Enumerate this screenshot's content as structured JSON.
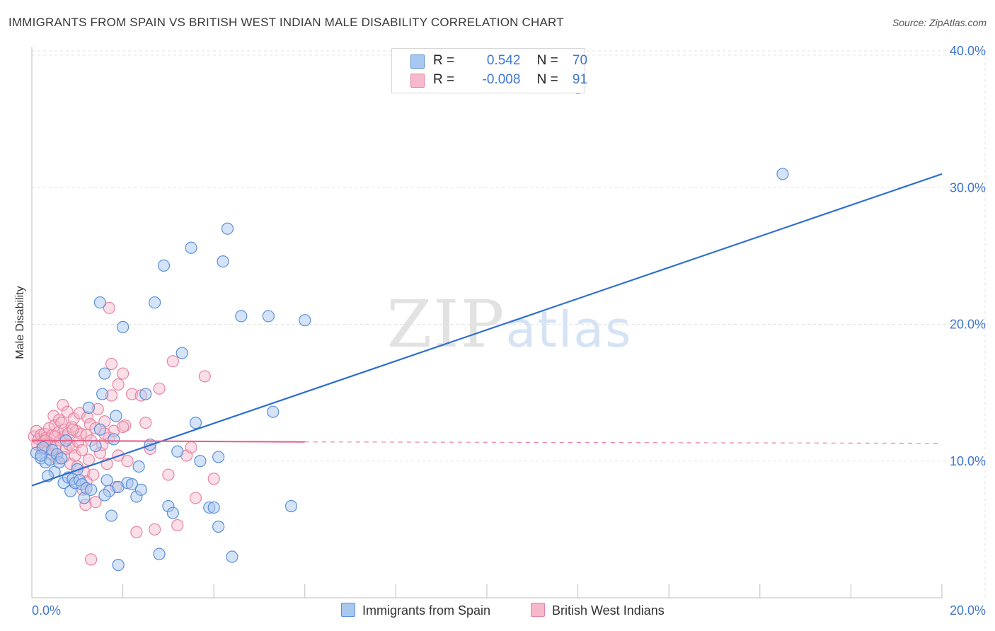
{
  "title": "IMMIGRANTS FROM SPAIN VS BRITISH WEST INDIAN MALE DISABILITY CORRELATION CHART",
  "source": "Source: ZipAtlas.com",
  "legend": {
    "r_label": "R =",
    "n_label": "N =",
    "series": [
      {
        "r": "0.542",
        "n": "70"
      },
      {
        "r": "-0.008",
        "n": "91"
      }
    ]
  },
  "bottom_legend": [
    "Immigrants from Spain",
    "British West Indians"
  ],
  "colors": {
    "blue_fill": "#a9c8f0",
    "blue_stroke": "#5b8fd8",
    "blue_line": "#2f6fcf",
    "pink_fill": "#f5b8cc",
    "pink_stroke": "#e7849f",
    "pink_line": "#e8638a",
    "label_blue": "#3f77d0"
  },
  "chart_data": {
    "type": "scatter",
    "title": "IMMIGRANTS FROM SPAIN VS BRITISH WEST INDIAN MALE DISABILITY CORRELATION CHART",
    "xlabel": "",
    "ylabel": "Male Disability",
    "xlim": [
      0,
      20
    ],
    "ylim": [
      0,
      40
    ],
    "x_tick_labels": [
      "0.0%",
      "20.0%"
    ],
    "y_tick_labels": [
      "10.0%",
      "20.0%",
      "30.0%",
      "40.0%"
    ],
    "y_ticks": [
      10,
      20,
      30,
      40
    ],
    "grid": true,
    "legend_position": "top-center",
    "watermark": "ZIPatlas",
    "series": [
      {
        "name": "Immigrants from Spain",
        "r": 0.542,
        "n": 70,
        "trend": {
          "x": [
            0,
            20
          ],
          "y": [
            8.2,
            31.0
          ],
          "style": "solid"
        },
        "points": [
          [
            0.1,
            10.6
          ],
          [
            0.2,
            10.2
          ],
          [
            0.25,
            11.0
          ],
          [
            0.3,
            9.9
          ],
          [
            0.4,
            10.1
          ],
          [
            0.45,
            10.8
          ],
          [
            0.5,
            9.2
          ],
          [
            0.55,
            10.5
          ],
          [
            0.6,
            9.9
          ],
          [
            0.65,
            10.2
          ],
          [
            0.7,
            8.4
          ],
          [
            0.75,
            11.5
          ],
          [
            0.8,
            8.8
          ],
          [
            0.85,
            7.8
          ],
          [
            0.9,
            8.7
          ],
          [
            0.95,
            8.4
          ],
          [
            1.0,
            9.4
          ],
          [
            1.05,
            8.6
          ],
          [
            1.1,
            8.3
          ],
          [
            1.15,
            7.3
          ],
          [
            1.2,
            8.0
          ],
          [
            1.25,
            13.9
          ],
          [
            1.3,
            7.9
          ],
          [
            1.4,
            11.1
          ],
          [
            1.5,
            12.3
          ],
          [
            1.55,
            14.9
          ],
          [
            1.6,
            16.4
          ],
          [
            1.65,
            8.6
          ],
          [
            1.7,
            7.8
          ],
          [
            1.75,
            6.0
          ],
          [
            1.8,
            11.6
          ],
          [
            1.85,
            13.3
          ],
          [
            1.9,
            8.1
          ],
          [
            2.0,
            19.8
          ],
          [
            2.1,
            8.4
          ],
          [
            2.2,
            8.3
          ],
          [
            2.3,
            7.4
          ],
          [
            2.35,
            9.6
          ],
          [
            2.4,
            7.9
          ],
          [
            2.5,
            14.9
          ],
          [
            2.6,
            11.2
          ],
          [
            2.7,
            21.6
          ],
          [
            2.8,
            3.2
          ],
          [
            2.9,
            24.3
          ],
          [
            3.0,
            6.7
          ],
          [
            3.1,
            6.2
          ],
          [
            3.2,
            10.7
          ],
          [
            3.3,
            17.9
          ],
          [
            3.5,
            25.6
          ],
          [
            3.6,
            12.8
          ],
          [
            3.7,
            10.0
          ],
          [
            3.9,
            6.6
          ],
          [
            4.0,
            6.6
          ],
          [
            4.1,
            10.3
          ],
          [
            4.1,
            5.2
          ],
          [
            4.2,
            24.6
          ],
          [
            4.3,
            27.0
          ],
          [
            4.4,
            3.0
          ],
          [
            4.6,
            20.6
          ],
          [
            5.2,
            20.6
          ],
          [
            5.3,
            13.6
          ],
          [
            5.7,
            6.7
          ],
          [
            6.0,
            20.3
          ],
          [
            1.5,
            21.6
          ],
          [
            12.0,
            37.3
          ],
          [
            16.5,
            31.0
          ],
          [
            0.2,
            10.4
          ],
          [
            0.35,
            8.9
          ],
          [
            1.9,
            2.4
          ],
          [
            1.6,
            7.5
          ]
        ]
      },
      {
        "name": "British West Indians",
        "r": -0.008,
        "n": 91,
        "trend": {
          "x": [
            0,
            6
          ],
          "y": [
            11.5,
            11.4
          ],
          "dashed_to": [
            20,
            11.3
          ],
          "style": "solid-then-dashed"
        },
        "points": [
          [
            0.05,
            11.8
          ],
          [
            0.1,
            12.2
          ],
          [
            0.12,
            11.2
          ],
          [
            0.15,
            11.6
          ],
          [
            0.2,
            11.9
          ],
          [
            0.22,
            10.9
          ],
          [
            0.25,
            11.4
          ],
          [
            0.28,
            12.0
          ],
          [
            0.3,
            11.1
          ],
          [
            0.32,
            11.7
          ],
          [
            0.35,
            10.8
          ],
          [
            0.38,
            12.4
          ],
          [
            0.4,
            11.3
          ],
          [
            0.42,
            10.5
          ],
          [
            0.45,
            11.9
          ],
          [
            0.48,
            13.3
          ],
          [
            0.5,
            12.6
          ],
          [
            0.52,
            11.0
          ],
          [
            0.55,
            10.2
          ],
          [
            0.58,
            12.1
          ],
          [
            0.6,
            13.0
          ],
          [
            0.62,
            11.5
          ],
          [
            0.65,
            12.8
          ],
          [
            0.68,
            14.1
          ],
          [
            0.7,
            11.8
          ],
          [
            0.72,
            12.3
          ],
          [
            0.75,
            10.9
          ],
          [
            0.78,
            13.6
          ],
          [
            0.8,
            12.0
          ],
          [
            0.82,
            11.2
          ],
          [
            0.85,
            9.8
          ],
          [
            0.88,
            12.5
          ],
          [
            0.9,
            11.0
          ],
          [
            0.92,
            13.1
          ],
          [
            0.95,
            10.4
          ],
          [
            0.98,
            12.2
          ],
          [
            1.0,
            9.6
          ],
          [
            1.02,
            11.4
          ],
          [
            1.05,
            13.5
          ],
          [
            1.08,
            12.0
          ],
          [
            1.1,
            10.8
          ],
          [
            1.12,
            7.9
          ],
          [
            1.15,
            9.2
          ],
          [
            1.18,
            6.8
          ],
          [
            1.2,
            11.9
          ],
          [
            1.22,
            13.2
          ],
          [
            1.25,
            10.1
          ],
          [
            1.28,
            12.7
          ],
          [
            1.3,
            11.5
          ],
          [
            1.35,
            9.0
          ],
          [
            1.4,
            12.4
          ],
          [
            1.45,
            13.8
          ],
          [
            1.5,
            10.6
          ],
          [
            1.55,
            11.2
          ],
          [
            1.6,
            12.9
          ],
          [
            1.65,
            9.8
          ],
          [
            1.7,
            11.7
          ],
          [
            1.75,
            14.8
          ],
          [
            1.8,
            12.2
          ],
          [
            1.85,
            8.1
          ],
          [
            1.9,
            10.4
          ],
          [
            2.0,
            16.4
          ],
          [
            2.05,
            12.6
          ],
          [
            2.1,
            10.0
          ],
          [
            2.2,
            14.9
          ],
          [
            2.3,
            4.8
          ],
          [
            2.4,
            14.8
          ],
          [
            2.5,
            12.8
          ],
          [
            2.6,
            10.9
          ],
          [
            2.7,
            5.0
          ],
          [
            2.8,
            15.3
          ],
          [
            3.0,
            9.0
          ],
          [
            3.1,
            17.3
          ],
          [
            3.2,
            5.3
          ],
          [
            3.4,
            10.4
          ],
          [
            3.5,
            11.0
          ],
          [
            3.6,
            7.3
          ],
          [
            3.8,
            16.2
          ],
          [
            4.0,
            8.7
          ],
          [
            1.3,
            2.8
          ],
          [
            1.4,
            7.0
          ],
          [
            1.7,
            21.2
          ],
          [
            1.75,
            17.1
          ],
          [
            1.9,
            15.6
          ],
          [
            0.3,
            11.5
          ],
          [
            0.5,
            11.8
          ],
          [
            0.9,
            12.3
          ],
          [
            1.2,
            8.5
          ],
          [
            1.6,
            12.0
          ],
          [
            2.0,
            12.5
          ],
          [
            0.7,
            10.3
          ]
        ]
      }
    ]
  }
}
